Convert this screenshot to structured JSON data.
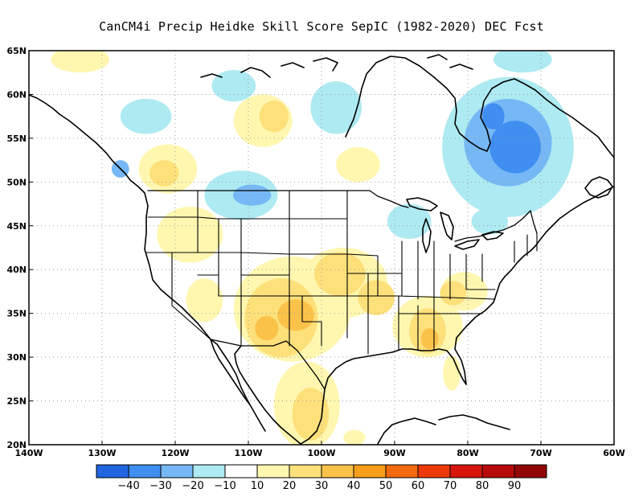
{
  "title": "CanCM4i Precip Heidke Skill Score SepIC (1982-2020) DEC Fcst",
  "map": {
    "projection": "lat-lon",
    "lon_range": [
      -140,
      -60
    ],
    "lat_range": [
      20,
      65
    ],
    "gridlines": "dotted",
    "lat_ticks": [
      {
        "value": 65,
        "label": "65N"
      },
      {
        "value": 60,
        "label": "60N"
      },
      {
        "value": 55,
        "label": "55N"
      },
      {
        "value": 50,
        "label": "50N"
      },
      {
        "value": 45,
        "label": "45N"
      },
      {
        "value": 40,
        "label": "40N"
      },
      {
        "value": 35,
        "label": "35N"
      },
      {
        "value": 30,
        "label": "30N"
      },
      {
        "value": 25,
        "label": "25N"
      },
      {
        "value": 20,
        "label": "20N"
      }
    ],
    "lon_ticks": [
      {
        "value": -140,
        "label": "140W"
      },
      {
        "value": -130,
        "label": "130W"
      },
      {
        "value": -120,
        "label": "120W"
      },
      {
        "value": -110,
        "label": "110W"
      },
      {
        "value": -100,
        "label": "100W"
      },
      {
        "value": -90,
        "label": "90W"
      },
      {
        "value": -80,
        "label": "80W"
      },
      {
        "value": -70,
        "label": "70W"
      },
      {
        "value": -60,
        "label": "60W"
      }
    ]
  },
  "colorbar": {
    "colors": [
      "#2166e0",
      "#3f8ef0",
      "#76b8f5",
      "#aeeaf2",
      "#ffffff",
      "#fff7b0",
      "#fde07a",
      "#fbc24a",
      "#f79e1a",
      "#f36a10",
      "#ee3a0a",
      "#d8160c",
      "#b80a0a",
      "#930606"
    ],
    "labels": [
      "-40",
      "-30",
      "-20",
      "-10",
      "10",
      "20",
      "30",
      "40",
      "50",
      "60",
      "70",
      "80",
      "90"
    ]
  },
  "skill_regions": [
    {
      "level": 30,
      "lon": -103.5,
      "lat": 34.8,
      "rx": 2.5,
      "ry": 1.8
    },
    {
      "level": 30,
      "lon": -107.5,
      "lat": 33.3,
      "rx": 1.6,
      "ry": 1.4
    },
    {
      "level": 30,
      "lon": -85.2,
      "lat": 32.1,
      "rx": 1.2,
      "ry": 1.2
    },
    {
      "level": 20,
      "lon": -105.5,
      "lat": 34.5,
      "rx": 5.0,
      "ry": 4.5
    },
    {
      "level": 20,
      "lon": -97.5,
      "lat": 39.5,
      "rx": 3.5,
      "ry": 2.5
    },
    {
      "level": 20,
      "lon": -92.5,
      "lat": 36.8,
      "rx": 2.5,
      "ry": 2.0
    },
    {
      "level": 20,
      "lon": -85.5,
      "lat": 33.0,
      "rx": 2.5,
      "ry": 2.6
    },
    {
      "level": 20,
      "lon": -82.0,
      "lat": 37.3,
      "rx": 1.8,
      "ry": 1.4
    },
    {
      "level": 20,
      "lon": -101.5,
      "lat": 23.5,
      "rx": 2.5,
      "ry": 3.0
    },
    {
      "level": 20,
      "lon": -121.5,
      "lat": 51.0,
      "rx": 2.0,
      "ry": 1.5
    },
    {
      "level": 20,
      "lon": -106.5,
      "lat": 57.5,
      "rx": 2.0,
      "ry": 1.8
    },
    {
      "level": 10,
      "lon": -104.0,
      "lat": 35.5,
      "rx": 8.0,
      "ry": 6.0
    },
    {
      "level": 10,
      "lon": -97.0,
      "lat": 38.5,
      "rx": 6.0,
      "ry": 4.0
    },
    {
      "level": 10,
      "lon": -85.5,
      "lat": 33.5,
      "rx": 4.8,
      "ry": 3.5
    },
    {
      "level": 10,
      "lon": -80.5,
      "lat": 37.5,
      "rx": 3.2,
      "ry": 2.2
    },
    {
      "level": 10,
      "lon": -118.0,
      "lat": 44.0,
      "rx": 4.5,
      "ry": 3.2
    },
    {
      "level": 10,
      "lon": -116.0,
      "lat": 36.5,
      "rx": 2.5,
      "ry": 2.5
    },
    {
      "level": 10,
      "lon": -102.0,
      "lat": 24.5,
      "rx": 4.5,
      "ry": 5.0
    },
    {
      "level": 10,
      "lon": -82.2,
      "lat": 28.2,
      "rx": 1.2,
      "ry": 2.0
    },
    {
      "level": 10,
      "lon": -108.0,
      "lat": 57.0,
      "rx": 4.0,
      "ry": 3.0
    },
    {
      "level": 10,
      "lon": -121.0,
      "lat": 51.5,
      "rx": 4.0,
      "ry": 2.8
    },
    {
      "level": 10,
      "lon": -95.0,
      "lat": 52.0,
      "rx": 3.0,
      "ry": 2.0
    },
    {
      "level": 10,
      "lon": -133.0,
      "lat": 64.0,
      "rx": 4.0,
      "ry": 1.5
    },
    {
      "level": 10,
      "lon": -95.5,
      "lat": 20.8,
      "rx": 1.5,
      "ry": 0.9
    },
    {
      "level": -10,
      "lon": -74.5,
      "lat": 54.0,
      "rx": 9.0,
      "ry": 8.0
    },
    {
      "level": -10,
      "lon": -111.0,
      "lat": 48.5,
      "rx": 5.0,
      "ry": 2.8
    },
    {
      "level": -10,
      "lon": -88.0,
      "lat": 45.5,
      "rx": 3.0,
      "ry": 2.0
    },
    {
      "level": -10,
      "lon": -98.0,
      "lat": 58.5,
      "rx": 3.5,
      "ry": 3.0
    },
    {
      "level": -10,
      "lon": -124.0,
      "lat": 57.5,
      "rx": 3.5,
      "ry": 2.0
    },
    {
      "level": -10,
      "lon": -112.0,
      "lat": 61.0,
      "rx": 3.0,
      "ry": 1.8
    },
    {
      "level": -10,
      "lon": -72.5,
      "lat": 64.0,
      "rx": 4.0,
      "ry": 1.5
    },
    {
      "level": -10,
      "lon": -77.0,
      "lat": 45.5,
      "rx": 2.5,
      "ry": 1.5
    },
    {
      "level": -20,
      "lon": -74.5,
      "lat": 54.5,
      "rx": 6.0,
      "ry": 5.0
    },
    {
      "level": -20,
      "lon": -109.5,
      "lat": 48.5,
      "rx": 2.6,
      "ry": 1.2
    },
    {
      "level": -20,
      "lon": -127.5,
      "lat": 51.5,
      "rx": 1.2,
      "ry": 1.0
    },
    {
      "level": -30,
      "lon": -73.5,
      "lat": 54.0,
      "rx": 3.5,
      "ry": 3.0
    },
    {
      "level": -30,
      "lon": -76.5,
      "lat": 57.5,
      "rx": 1.5,
      "ry": 1.5
    }
  ]
}
